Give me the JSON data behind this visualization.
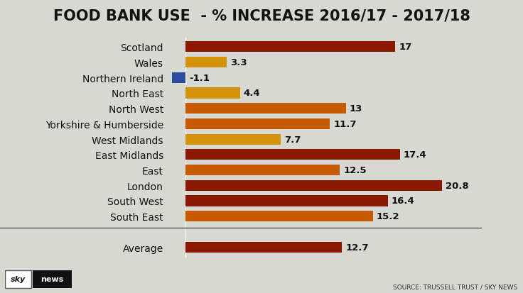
{
  "title": "FOOD BANK USE  - % INCREASE 2016/17 - 2017/18",
  "categories": [
    "Scotland",
    "Wales",
    "Northern Ireland",
    "North East",
    "North West",
    "Yorkshire & Humberside",
    "West Midlands",
    "East Midlands",
    "East",
    "London",
    "South West",
    "South East"
  ],
  "values": [
    17,
    3.3,
    -1.1,
    4.4,
    13,
    11.7,
    7.7,
    17.4,
    12.5,
    20.8,
    16.4,
    15.2
  ],
  "bar_colors": [
    "#8B1800",
    "#D4920A",
    "#2B4BA0",
    "#D4920A",
    "#C55A00",
    "#C55A00",
    "#D4920A",
    "#8B1800",
    "#C55A00",
    "#8B1800",
    "#8B1800",
    "#C55A00"
  ],
  "average_value": 12.7,
  "average_color": "#8B1800",
  "background_color": "#D8D8D2",
  "title_fontsize": 15,
  "value_fontsize": 9.5,
  "label_fontsize": 10,
  "source_text": "SOURCE: TRUSSELL TRUST / SKY NEWS"
}
